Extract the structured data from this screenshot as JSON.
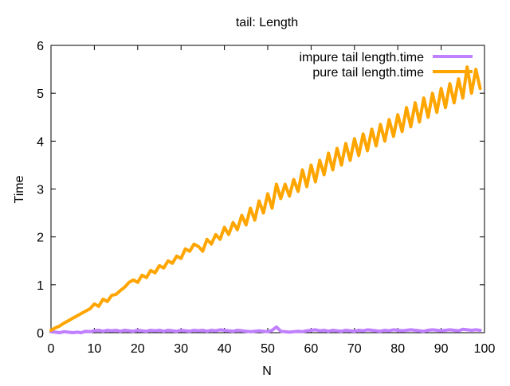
{
  "chart_data": {
    "type": "line",
    "title": "tail: Length",
    "xlabel": "N",
    "ylabel": "Time",
    "xlim": [
      0,
      100
    ],
    "ylim": [
      0,
      6
    ],
    "x_ticks": [
      0,
      10,
      20,
      30,
      40,
      50,
      60,
      70,
      80,
      90,
      100
    ],
    "y_ticks": [
      0,
      1,
      2,
      3,
      4,
      5,
      6
    ],
    "legend_position": "top-right",
    "grid": false,
    "series": [
      {
        "name": "impure tail length.time",
        "color": "#c080ff",
        "x": [
          0,
          1,
          2,
          3,
          4,
          5,
          6,
          7,
          8,
          9,
          10,
          11,
          12,
          13,
          14,
          15,
          16,
          17,
          18,
          19,
          20,
          21,
          22,
          23,
          24,
          25,
          26,
          27,
          28,
          29,
          30,
          31,
          32,
          33,
          34,
          35,
          36,
          37,
          38,
          39,
          40,
          41,
          42,
          43,
          44,
          45,
          46,
          47,
          48,
          49,
          50,
          51,
          52,
          53,
          54,
          55,
          56,
          57,
          58,
          59,
          60,
          61,
          62,
          63,
          64,
          65,
          66,
          67,
          68,
          69,
          70,
          71,
          72,
          73,
          74,
          75,
          76,
          77,
          78,
          79,
          80,
          81,
          82,
          83,
          84,
          85,
          86,
          87,
          88,
          89,
          90,
          91,
          92,
          93,
          94,
          95,
          96,
          97,
          98,
          99
        ],
        "values": [
          0.02,
          0.01,
          0.0,
          0.02,
          0.01,
          0.0,
          0.01,
          0.0,
          0.03,
          0.02,
          0.04,
          0.05,
          0.03,
          0.05,
          0.04,
          0.05,
          0.03,
          0.05,
          0.04,
          0.03,
          0.05,
          0.04,
          0.03,
          0.05,
          0.04,
          0.05,
          0.03,
          0.05,
          0.04,
          0.03,
          0.05,
          0.04,
          0.03,
          0.05,
          0.04,
          0.05,
          0.03,
          0.05,
          0.04,
          0.06,
          0.05,
          0.04,
          0.03,
          0.05,
          0.04,
          0.03,
          0.02,
          0.03,
          0.04,
          0.03,
          0.02,
          0.05,
          0.12,
          0.03,
          0.02,
          0.01,
          0.02,
          0.03,
          0.02,
          0.04,
          0.05,
          0.06,
          0.04,
          0.05,
          0.03,
          0.05,
          0.04,
          0.03,
          0.05,
          0.04,
          0.03,
          0.05,
          0.04,
          0.06,
          0.05,
          0.04,
          0.03,
          0.05,
          0.04,
          0.06,
          0.05,
          0.04,
          0.05,
          0.06,
          0.05,
          0.04,
          0.03,
          0.05,
          0.06,
          0.05,
          0.04,
          0.05,
          0.06,
          0.05,
          0.04,
          0.07,
          0.06,
          0.05,
          0.06,
          0.05
        ]
      },
      {
        "name": "pure tail length.time",
        "color": "#ffa500",
        "x": [
          0,
          1,
          2,
          3,
          4,
          5,
          6,
          7,
          8,
          9,
          10,
          11,
          12,
          13,
          14,
          15,
          16,
          17,
          18,
          19,
          20,
          21,
          22,
          23,
          24,
          25,
          26,
          27,
          28,
          29,
          30,
          31,
          32,
          33,
          34,
          35,
          36,
          37,
          38,
          39,
          40,
          41,
          42,
          43,
          44,
          45,
          46,
          47,
          48,
          49,
          50,
          51,
          52,
          53,
          54,
          55,
          56,
          57,
          58,
          59,
          60,
          61,
          62,
          63,
          64,
          65,
          66,
          67,
          68,
          69,
          70,
          71,
          72,
          73,
          74,
          75,
          76,
          77,
          78,
          79,
          80,
          81,
          82,
          83,
          84,
          85,
          86,
          87,
          88,
          89,
          90,
          91,
          92,
          93,
          94,
          95,
          96,
          97,
          98,
          99
        ],
        "values": [
          0.05,
          0.1,
          0.14,
          0.2,
          0.25,
          0.3,
          0.35,
          0.4,
          0.45,
          0.5,
          0.6,
          0.55,
          0.7,
          0.65,
          0.78,
          0.8,
          0.88,
          0.95,
          1.05,
          1.1,
          1.05,
          1.2,
          1.15,
          1.3,
          1.25,
          1.4,
          1.35,
          1.5,
          1.45,
          1.6,
          1.55,
          1.75,
          1.7,
          1.85,
          1.8,
          1.7,
          1.95,
          1.85,
          2.05,
          1.95,
          2.2,
          2.05,
          2.3,
          2.15,
          2.45,
          2.25,
          2.6,
          2.35,
          2.75,
          2.5,
          2.9,
          2.6,
          3.1,
          2.8,
          3.1,
          2.85,
          3.2,
          2.95,
          3.4,
          3.05,
          3.5,
          3.15,
          3.6,
          3.3,
          3.75,
          3.4,
          3.85,
          3.5,
          3.95,
          3.6,
          4.05,
          3.7,
          4.15,
          3.8,
          4.25,
          3.9,
          4.35,
          4.0,
          4.45,
          4.1,
          4.55,
          4.2,
          4.7,
          4.3,
          4.8,
          4.4,
          4.9,
          4.5,
          5.0,
          4.6,
          5.1,
          4.7,
          5.2,
          4.8,
          5.3,
          4.9,
          5.55,
          5.0,
          5.5,
          5.1
        ]
      }
    ]
  }
}
